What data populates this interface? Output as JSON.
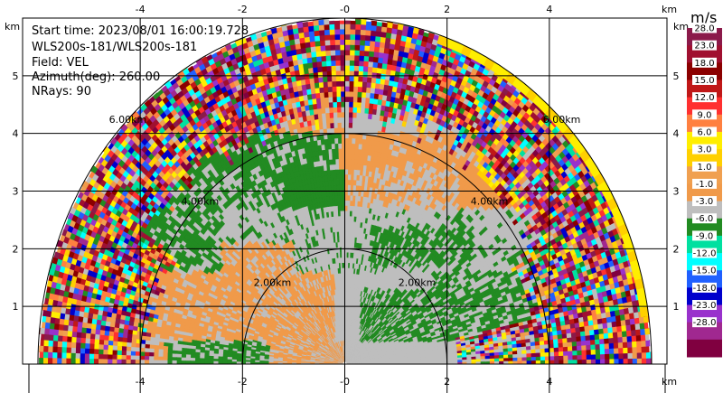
{
  "info": {
    "lines": [
      "Start time: 2023/08/01 16:00:19.728",
      "WLS200s-181/WLS200s-181",
      "Field: VEL",
      "Azimuth(deg): 260.00",
      "NRays: 90"
    ]
  },
  "axes": {
    "x_tick_labels": [
      "-4",
      "-2",
      "-0",
      "2",
      "4"
    ],
    "y_tick_labels": [
      "1",
      "2",
      "3",
      "4",
      "5"
    ],
    "x_unit": "km",
    "y_unit": "km"
  },
  "rings": {
    "labels": [
      "2.00km",
      "4.00km",
      "6.00km"
    ]
  },
  "colorbar": {
    "unit": "m/s",
    "labels": [
      "28.0",
      "23.0",
      "18.0",
      "15.0",
      "12.0",
      "9.0",
      "6.0",
      "3.0",
      "1.0",
      "-1.0",
      "-3.0",
      "-6.0",
      "-9.0",
      "-12.0",
      "-15.0",
      "-18.0",
      "-23.0",
      "-28.0"
    ],
    "colors": [
      "#8b1a4a",
      "#a01030",
      "#8b0000",
      "#c01818",
      "#ff3030",
      "#ff8040",
      "#ffee00",
      "#ffd000",
      "#f0a050",
      "#f09a4a",
      "#bebebe",
      "#228b22",
      "#00e0a0",
      "#00ffff",
      "#2060ff",
      "#0000cc",
      "#9932cc",
      "#a02890",
      "#800040"
    ]
  },
  "chart_data": {
    "type": "heatmap",
    "title": "",
    "plot_type": "RHI (range-height) polar scan",
    "xlabel": "km",
    "ylabel": "km",
    "xlim": [
      -6.3,
      6.3
    ],
    "ylim": [
      0,
      6.0
    ],
    "grid": true,
    "range_rings_km": [
      2,
      4,
      6
    ],
    "max_range_km": 6.0,
    "elevation_range_deg": [
      0,
      180
    ],
    "n_rays": 90,
    "field": "VEL",
    "units": "m/s",
    "colorbar_levels": [
      -28,
      -23,
      -18,
      -15,
      -12,
      -9,
      -6,
      -3,
      -1,
      1,
      3,
      6,
      9,
      12,
      15,
      18,
      23,
      28
    ],
    "regions": [
      {
        "description": "near-zero velocity (grey, -1 to 1 m/s)",
        "range_km": [
          0,
          4.0
        ],
        "value": 0.0
      },
      {
        "description": "weak positive (orange, 1 to 3 m/s)",
        "range_km": [
          0.5,
          4.2
        ],
        "value": 2.0
      },
      {
        "description": "weak negative (green, -3 to -1 m/s)",
        "range_km": [
          0.5,
          4.2
        ],
        "value": -2.0
      },
      {
        "description": "moderate negative band (teal, -9 to -6 m/s)",
        "range_km": [
          4.0,
          5.0
        ],
        "value": -7.5
      },
      {
        "description": "moderate positive band (yellow, 3 to 9 m/s)",
        "range_km": [
          4.0,
          5.0
        ],
        "value": 5.0
      },
      {
        "description": "noisy / aliased outer gates (mixed colours)",
        "range_km": [
          4.0,
          6.0
        ],
        "value": null
      }
    ]
  }
}
